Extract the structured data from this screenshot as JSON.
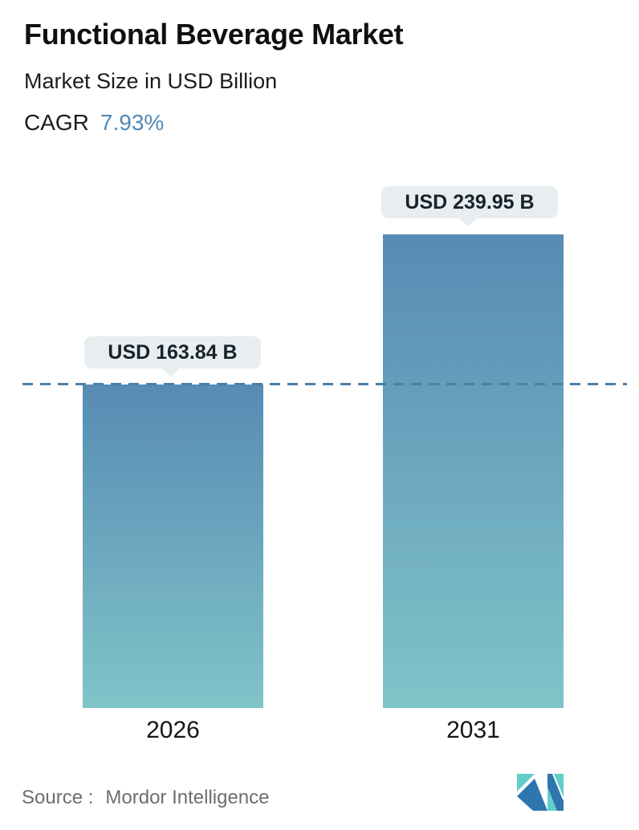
{
  "header": {
    "title": "Functional Beverage Market",
    "subtitle": "Market Size in USD Billion",
    "cagr_label": "CAGR",
    "cagr_value": "7.93%"
  },
  "chart_data": {
    "type": "bar",
    "title": "Functional Beverage Market",
    "subtitle": "Market Size in USD Billion",
    "cagr": "7.93%",
    "unit": "USD Billion",
    "categories": [
      "2026",
      "2031"
    ],
    "values": [
      163.84,
      239.95
    ],
    "value_labels": [
      "USD 163.84 B",
      "USD 239.95 B"
    ],
    "ylim": [
      0,
      245
    ],
    "grid": false,
    "legend": false,
    "reference_line": {
      "style": "dashed",
      "at_value": 163.84,
      "color": "#4a7fa8"
    },
    "bar_gradient_top": "#578bb4",
    "bar_gradient_bottom": "#80c4c9"
  },
  "footer": {
    "source_label": "Source :",
    "source_name": "Mordor Intelligence",
    "logo_name": "mordor-intelligence-logo",
    "logo_colors": {
      "blue": "#2e76ae",
      "teal": "#62cec9"
    }
  },
  "colors": {
    "cagr_value_text": "#5089b8",
    "tooltip_background": "#e8edf0",
    "title_text": "#101010",
    "source_text": "#6e6e6e"
  }
}
